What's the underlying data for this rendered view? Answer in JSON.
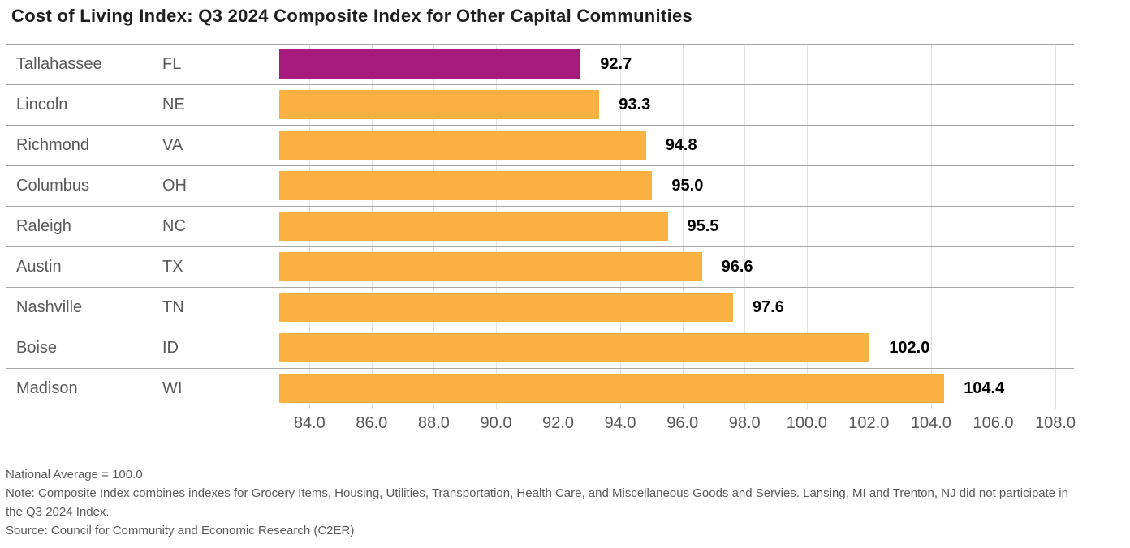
{
  "chart_data": {
    "type": "bar",
    "orientation": "horizontal",
    "title": "Cost of Living Index: Q3 2024 Composite Index for Other Capital Communities",
    "xlabel": "",
    "ylabel": "",
    "xlim": [
      83.0,
      108.6
    ],
    "xticks": [
      "84.0",
      "86.0",
      "88.0",
      "90.0",
      "92.0",
      "94.0",
      "96.0",
      "98.0",
      "100.0",
      "102.0",
      "104.0",
      "106.0",
      "108.0"
    ],
    "grid": "vertical-gridlines-on",
    "legend": "none",
    "bar_color": "#FBB042",
    "highlight_color": "#A61B7D",
    "rows": [
      {
        "city": "Tallahassee",
        "state": "FL",
        "value": 92.7,
        "label": "92.7",
        "highlight": true
      },
      {
        "city": "Lincoln",
        "state": "NE",
        "value": 93.3,
        "label": "93.3",
        "highlight": false
      },
      {
        "city": "Richmond",
        "state": "VA",
        "value": 94.8,
        "label": "94.8",
        "highlight": false
      },
      {
        "city": "Columbus",
        "state": "OH",
        "value": 95.0,
        "label": "95.0",
        "highlight": false
      },
      {
        "city": "Raleigh",
        "state": "NC",
        "value": 95.5,
        "label": "95.5",
        "highlight": false
      },
      {
        "city": "Austin",
        "state": "TX",
        "value": 96.6,
        "label": "96.6",
        "highlight": false
      },
      {
        "city": "Nashville",
        "state": "TN",
        "value": 97.6,
        "label": "97.6",
        "highlight": false
      },
      {
        "city": "Boise",
        "state": "ID",
        "value": 102.0,
        "label": "102.0",
        "highlight": false
      },
      {
        "city": "Madison",
        "state": "WI",
        "value": 104.4,
        "label": "104.4",
        "highlight": false
      }
    ]
  },
  "notes": {
    "national_average": "National Average = 100.0",
    "note": "Note: Composite Index combines indexes for Grocery Items, Housing, Utilities, Transportation, Health Care, and Miscellaneous Goods and Servies. Lansing, MI and Trenton, NJ did not participate in the Q3 2024 Index.",
    "source": "Source: Council for Community and Economic Research (C2ER)"
  }
}
